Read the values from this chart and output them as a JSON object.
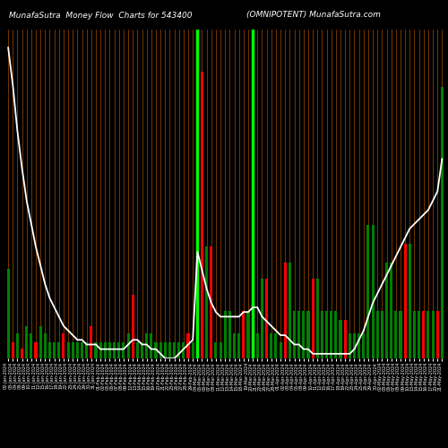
{
  "title_left": "MunafaSutra  Money Flow  Charts for 543400",
  "title_right": "(OMNIPOTENT) MunafaSutra.com",
  "bg_color": "#000000",
  "bar_colors": [
    "green",
    "red",
    "green",
    "red",
    "green",
    "green",
    "red",
    "green",
    "green",
    "green",
    "green",
    "green",
    "red",
    "green",
    "green",
    "green",
    "green",
    "green",
    "red",
    "green",
    "green",
    "green",
    "green",
    "green",
    "green",
    "green",
    "green",
    "red",
    "green",
    "green",
    "green",
    "green",
    "green",
    "green",
    "green",
    "green",
    "green",
    "green",
    "green",
    "red",
    "green",
    "red",
    "red",
    "green",
    "red",
    "green",
    "green",
    "green",
    "green",
    "green",
    "green",
    "red",
    "green",
    "red",
    "green",
    "green",
    "red",
    "green",
    "green",
    "green",
    "red",
    "green",
    "green",
    "green",
    "green",
    "green",
    "red",
    "green",
    "green",
    "green",
    "green",
    "green",
    "green",
    "red",
    "green",
    "green",
    "green",
    "green",
    "green",
    "green",
    "green",
    "green",
    "green",
    "green",
    "green",
    "green",
    "red",
    "green",
    "green",
    "green",
    "red",
    "green",
    "green",
    "red",
    "green"
  ],
  "bar_heights": [
    28,
    5,
    8,
    3,
    10,
    8,
    5,
    10,
    8,
    5,
    5,
    5,
    8,
    5,
    5,
    5,
    5,
    5,
    10,
    5,
    5,
    5,
    5,
    5,
    5,
    5,
    8,
    20,
    5,
    5,
    8,
    8,
    5,
    5,
    5,
    5,
    5,
    5,
    5,
    8,
    5,
    95,
    90,
    35,
    35,
    5,
    5,
    15,
    15,
    8,
    8,
    15,
    15,
    8,
    8,
    25,
    25,
    8,
    8,
    5,
    30,
    30,
    15,
    15,
    15,
    15,
    25,
    25,
    15,
    15,
    15,
    15,
    12,
    12,
    8,
    8,
    8,
    8,
    42,
    42,
    15,
    15,
    30,
    30,
    15,
    15,
    36,
    36,
    15,
    15,
    15,
    15,
    15,
    15,
    85
  ],
  "line_values": [
    96,
    88,
    78,
    70,
    63,
    58,
    53,
    49,
    45,
    42,
    40,
    38,
    36,
    35,
    34,
    33,
    33,
    32,
    32,
    32,
    31,
    31,
    31,
    31,
    31,
    31,
    32,
    33,
    33,
    32,
    32,
    31,
    31,
    30,
    29,
    29,
    29,
    30,
    31,
    32,
    33,
    52,
    48,
    44,
    41,
    39,
    38,
    38,
    38,
    38,
    38,
    39,
    39,
    40,
    40,
    38,
    37,
    36,
    35,
    34,
    34,
    33,
    32,
    32,
    31,
    31,
    30,
    30,
    30,
    30,
    30,
    30,
    30,
    30,
    30,
    31,
    33,
    35,
    38,
    41,
    43,
    45,
    47,
    49,
    51,
    53,
    55,
    57,
    58,
    59,
    60,
    61,
    63,
    65,
    72
  ],
  "vline_positions": [
    41,
    53
  ],
  "vline_color": "#00ff00",
  "line_color": "#ffffff",
  "orange_vline_color": "#b35400",
  "x_labels": [
    "02-Jan-2024",
    "03-Jan-2024",
    "04-Jan-2024",
    "08-Jan-2024",
    "09-Jan-2024",
    "10-Jan-2024",
    "11-Jan-2024",
    "12-Jan-2024",
    "15-Jan-2024",
    "16-Jan-2024",
    "17-Jan-2024",
    "18-Jan-2024",
    "19-Jan-2024",
    "22-Jan-2024",
    "23-Jan-2024",
    "24-Jan-2024",
    "25-Jan-2024",
    "29-Jan-2024",
    "30-Jan-2024",
    "31-Jan-2024",
    "01-Feb-2024",
    "02-Feb-2024",
    "05-Feb-2024",
    "06-Feb-2024",
    "07-Feb-2024",
    "08-Feb-2024",
    "09-Feb-2024",
    "12-Feb-2024",
    "13-Feb-2024",
    "14-Feb-2024",
    "15-Feb-2024",
    "16-Feb-2024",
    "19-Feb-2024",
    "20-Feb-2024",
    "21-Feb-2024",
    "22-Feb-2024",
    "23-Feb-2024",
    "26-Feb-2024",
    "27-Feb-2024",
    "28-Feb-2024",
    "29-Feb-2024",
    "04-Mar-2024",
    "05-Mar-2024",
    "06-Mar-2024",
    "07-Mar-2024",
    "08-Mar-2024",
    "11-Mar-2024",
    "12-Mar-2024",
    "13-Mar-2024",
    "14-Mar-2024",
    "15-Mar-2024",
    "18-Mar-2024",
    "19-Mar-2024",
    "20-Mar-2024",
    "21-Mar-2024",
    "22-Mar-2024",
    "26-Mar-2024",
    "27-Mar-2024",
    "28-Mar-2024",
    "01-Apr-2024",
    "02-Apr-2024",
    "03-Apr-2024",
    "04-Apr-2024",
    "05-Apr-2024",
    "08-Apr-2024",
    "09-Apr-2024",
    "10-Apr-2024",
    "11-Apr-2024",
    "12-Apr-2024",
    "15-Apr-2024",
    "16-Apr-2024",
    "17-Apr-2024",
    "18-Apr-2024",
    "19-Apr-2024",
    "22-Apr-2024",
    "23-Apr-2024",
    "24-Apr-2024",
    "25-Apr-2024",
    "26-Apr-2024",
    "29-Apr-2024",
    "30-Apr-2024",
    "02-May-2024",
    "03-May-2024",
    "06-May-2024",
    "07-May-2024",
    "08-May-2024",
    "09-May-2024",
    "10-May-2024",
    "13-May-2024",
    "14-May-2024",
    "15-May-2024",
    "16-May-2024",
    "17-May-2024",
    "20-May-2024",
    "21-May-2024"
  ]
}
